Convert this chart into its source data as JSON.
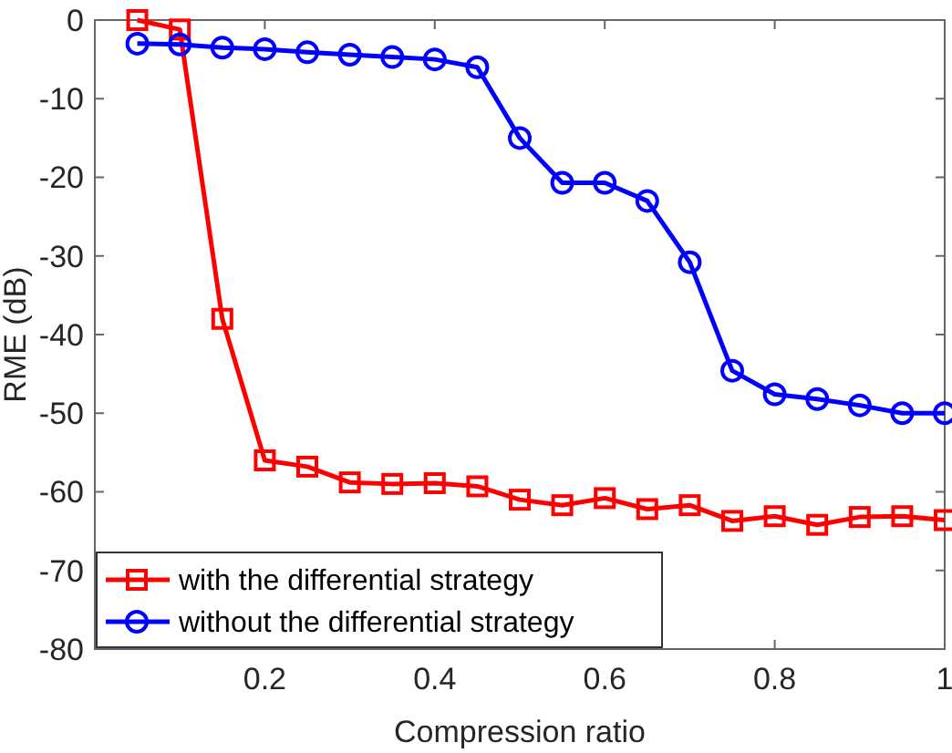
{
  "chart_data": {
    "type": "line",
    "xlabel": "Compression ratio",
    "ylabel": "RME (dB)",
    "x": [
      0.05,
      0.1,
      0.15,
      0.2,
      0.25,
      0.3,
      0.35,
      0.4,
      0.45,
      0.5,
      0.55,
      0.6,
      0.65,
      0.7,
      0.75,
      0.8,
      0.85,
      0.9,
      0.95,
      1
    ],
    "series": [
      {
        "name": "with the differential strategy",
        "color": "#ff0000",
        "marker": "square",
        "values": [
          0,
          -1.2,
          -38,
          -56,
          -56.8,
          -58.8,
          -59,
          -58.9,
          -59.3,
          -61,
          -61.7,
          -60.8,
          -62.2,
          -61.7,
          -63.7,
          -63.1,
          -64.2,
          -63.2,
          -63.1,
          -63.6
        ]
      },
      {
        "name": "without the differential strategy",
        "color": "#0000ff",
        "marker": "circle",
        "values": [
          -3,
          -3.1,
          -3.5,
          -3.7,
          -4.1,
          -4.4,
          -4.7,
          -5,
          -6,
          -15,
          -20.7,
          -20.7,
          -23,
          -30.8,
          -44.6,
          -47.6,
          -48.2,
          -49,
          -50,
          -50
        ]
      }
    ],
    "xlim": [
      0,
      1
    ],
    "xticks": [
      0.2,
      0.4,
      0.6,
      0.8,
      1
    ],
    "ylim": [
      -80,
      0
    ],
    "yticks": [
      -80,
      -70,
      -60,
      -50,
      -40,
      -30,
      -20,
      -10,
      0
    ],
    "grid": false,
    "legend": "bottom left",
    "line_style": "solid"
  }
}
